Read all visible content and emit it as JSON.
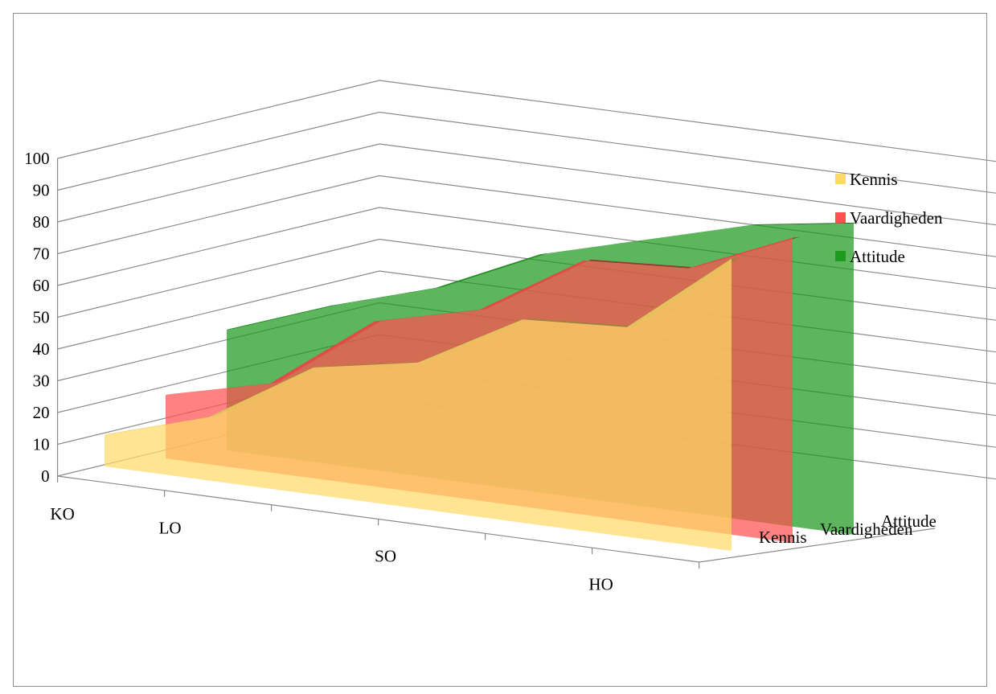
{
  "chart_data": {
    "type": "area",
    "view": "3d",
    "categories": [
      "KO",
      "LO",
      "",
      "SO",
      "",
      "HO",
      ""
    ],
    "series": [
      {
        "name": "Kennis",
        "color": "#ffd966",
        "values": [
          10,
          20,
          40,
          46,
          64,
          66,
          92
        ]
      },
      {
        "name": "Vaardigheden",
        "color": "#ff5050",
        "values": [
          20,
          28,
          52,
          60,
          80,
          82,
          96
        ]
      },
      {
        "name": "Attitude",
        "color": "#1e9a1e",
        "values": [
          38,
          50,
          60,
          75,
          84,
          93,
          98
        ]
      }
    ],
    "y_ticks": [
      "0",
      "10",
      "20",
      "30",
      "40",
      "50",
      "60",
      "70",
      "80",
      "90",
      "100"
    ],
    "ylim": [
      0,
      100
    ],
    "depth_labels": [
      "Kennis",
      "Vaardigheden",
      "Attitude"
    ],
    "legend": {
      "position": "right",
      "items": [
        "Kennis",
        "Vaardigheden",
        "Attitude"
      ]
    },
    "grid": true,
    "title": "",
    "xlabel": "",
    "ylabel": ""
  }
}
